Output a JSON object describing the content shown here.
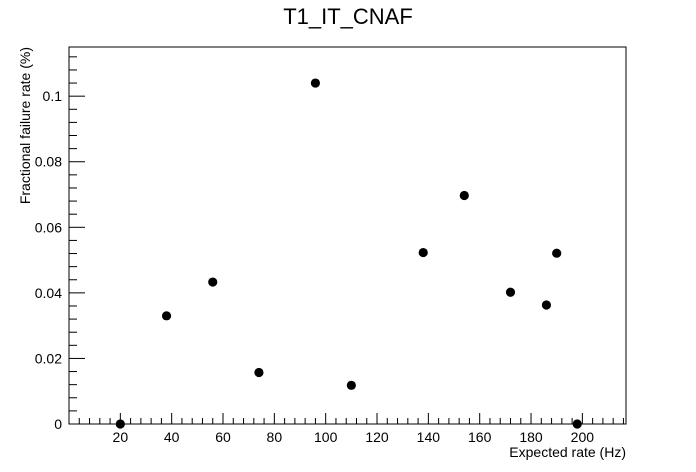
{
  "chart_data": {
    "type": "scatter",
    "title": "T1_IT_CNAF",
    "xlabel": "Expected rate (Hz)",
    "ylabel": "Fractional failure rate (%)",
    "xlim": [
      0,
      217
    ],
    "ylim": [
      0,
      0.115
    ],
    "xticks": [
      20,
      40,
      60,
      80,
      100,
      120,
      140,
      160,
      180,
      200
    ],
    "yticks": [
      0,
      0.02,
      0.04,
      0.06,
      0.08,
      0.1
    ],
    "ytick_labels": [
      "0",
      "0.02",
      "0.04",
      "0.06",
      "0.08",
      "0.1"
    ],
    "grid": false,
    "marker_color": "#000000",
    "points": [
      {
        "x": 20,
        "y": 0.0
      },
      {
        "x": 38,
        "y": 0.033
      },
      {
        "x": 56,
        "y": 0.0433
      },
      {
        "x": 74,
        "y": 0.0157
      },
      {
        "x": 96,
        "y": 0.104
      },
      {
        "x": 110,
        "y": 0.0118
      },
      {
        "x": 138,
        "y": 0.0523
      },
      {
        "x": 154,
        "y": 0.0697
      },
      {
        "x": 172,
        "y": 0.0402
      },
      {
        "x": 186,
        "y": 0.0363
      },
      {
        "x": 190,
        "y": 0.0521
      },
      {
        "x": 198,
        "y": 0.0
      }
    ]
  }
}
